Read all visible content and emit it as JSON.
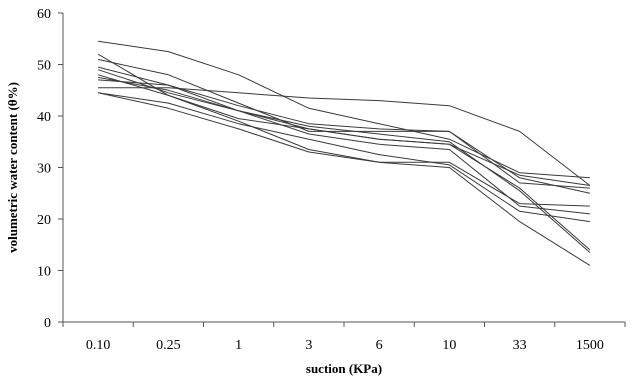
{
  "chart_data": {
    "type": "line",
    "title": "",
    "xlabel": "suction (KPa)",
    "ylabel": "volumetric water content (θ%)",
    "categories": [
      "0.10",
      "0.25",
      "1",
      "3",
      "6",
      "10",
      "33",
      "1500"
    ],
    "ylim": [
      0,
      60
    ],
    "yticks": [
      0,
      10,
      20,
      30,
      40,
      50,
      60
    ],
    "grid": false,
    "legend": "none",
    "line_color": "#3a3a3a",
    "series": [
      {
        "values": [
          54.5,
          52.5,
          48.0,
          41.5,
          38.5,
          35.5,
          29.0,
          28.0
        ]
      },
      {
        "values": [
          52.0,
          44.0,
          39.5,
          37.5,
          35.5,
          34.5,
          28.5,
          26.5
        ]
      },
      {
        "values": [
          51.0,
          48.0,
          42.5,
          37.0,
          37.0,
          37.0,
          28.0,
          25.0
        ]
      },
      {
        "values": [
          49.5,
          46.0,
          42.0,
          38.5,
          37.5,
          37.0,
          27.0,
          26.0
        ]
      },
      {
        "values": [
          49.0,
          44.5,
          41.0,
          37.5,
          35.5,
          34.5,
          26.0,
          14.0
        ]
      },
      {
        "values": [
          48.0,
          44.0,
          39.0,
          33.5,
          31.0,
          31.0,
          23.0,
          22.5
        ]
      },
      {
        "values": [
          47.5,
          45.0,
          41.0,
          38.0,
          36.5,
          35.0,
          25.5,
          13.5
        ]
      },
      {
        "values": [
          45.5,
          45.5,
          44.5,
          43.5,
          43.0,
          42.0,
          37.0,
          26.5
        ]
      },
      {
        "values": [
          44.5,
          42.5,
          38.5,
          35.5,
          32.5,
          30.5,
          21.5,
          19.5
        ]
      },
      {
        "values": [
          44.5,
          41.5,
          37.5,
          33.0,
          31.0,
          30.0,
          19.5,
          11.0
        ]
      },
      {
        "values": [
          47.0,
          46.0,
          41.0,
          36.5,
          34.5,
          33.5,
          22.5,
          21.0
        ]
      }
    ]
  }
}
